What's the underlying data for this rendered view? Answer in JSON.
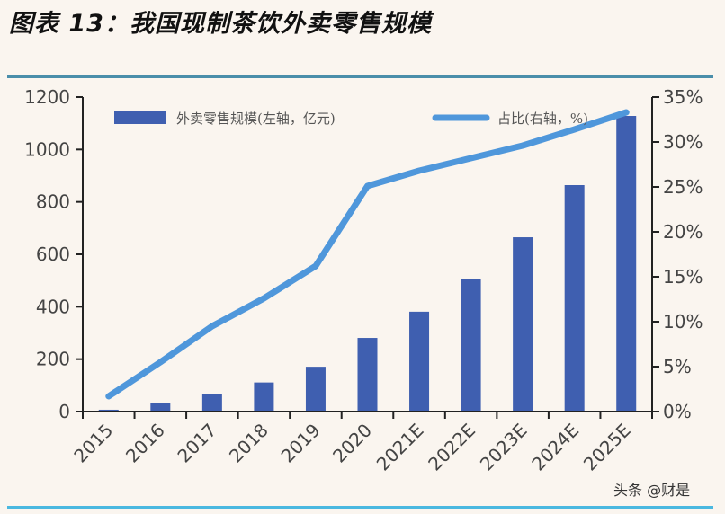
{
  "title": "图表 13：我国现制茶饮外卖零售规模",
  "watermark": "头条 @财是",
  "colors": {
    "bar": "#3f5fb0",
    "line": "#4f97db",
    "rule": "#4a9ec4",
    "background": "#faf5ef"
  },
  "chart_data": {
    "type": "bar+line",
    "title": "我国现制茶饮外卖零售规模",
    "categories": [
      "2015",
      "2016",
      "2017",
      "2018",
      "2019",
      "2020",
      "2021E",
      "2022E",
      "2023E",
      "2024E",
      "2025E"
    ],
    "series": [
      {
        "name": "外卖零售规模(左轴，亿元)",
        "type": "bar",
        "axis": "left",
        "values": [
          7,
          32,
          66,
          111,
          171,
          281,
          381,
          504,
          665,
          864,
          1128
        ]
      },
      {
        "name": "占比(右轴，%)",
        "type": "line",
        "axis": "right",
        "values": [
          1.7,
          5.5,
          9.5,
          12.6,
          16.2,
          25.1,
          26.8,
          28.2,
          29.6,
          31.4,
          33.3
        ]
      }
    ],
    "left_axis": {
      "ylim": [
        0,
        1200
      ],
      "ticks": [
        "0",
        "200",
        "400",
        "600",
        "800",
        "1000",
        "1200"
      ]
    },
    "right_axis": {
      "ylim": [
        0,
        35
      ],
      "ticks": [
        "0%",
        "5%",
        "10%",
        "15%",
        "20%",
        "25%",
        "30%",
        "35%"
      ]
    },
    "legend": {
      "position": "top",
      "items": [
        "外卖零售规模(左轴，亿元)",
        "占比(右轴，%)"
      ]
    },
    "grid": false
  }
}
